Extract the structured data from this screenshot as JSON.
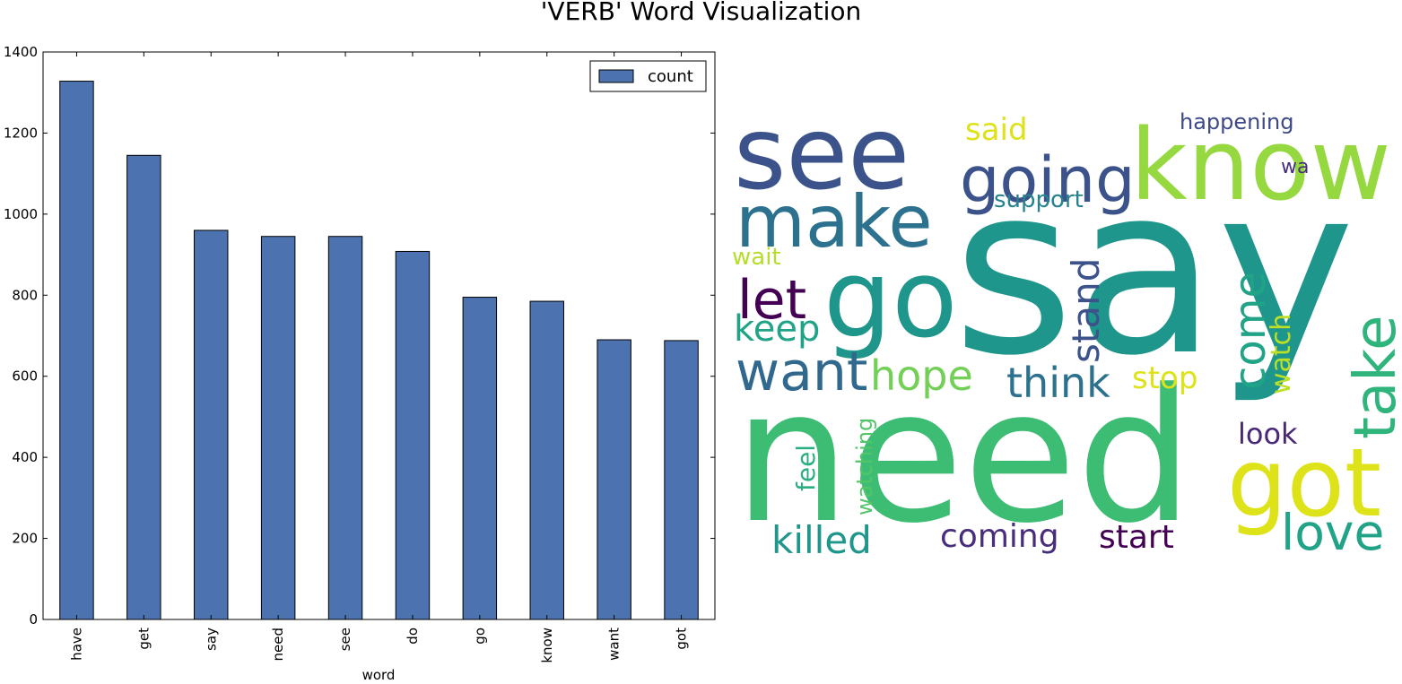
{
  "figure_title": "'VERB' Word Visualization",
  "chart_data": [
    {
      "type": "bar",
      "categories": [
        "have",
        "get",
        "say",
        "need",
        "see",
        "do",
        "go",
        "know",
        "want",
        "got"
      ],
      "series": [
        {
          "name": "count",
          "values": [
            1328,
            1145,
            960,
            945,
            945,
            908,
            795,
            785,
            690,
            688
          ],
          "color": "#4c72b0"
        }
      ],
      "xlabel": "word",
      "ylabel": "",
      "ylim": [
        0,
        1400
      ],
      "yticks": [
        0,
        200,
        400,
        600,
        800,
        1000,
        1200,
        1400
      ],
      "grid": false,
      "legend_placement": "top-right"
    },
    {
      "type": "wordcloud",
      "words": [
        {
          "text": "say",
          "color": "#1f968b"
        },
        {
          "text": "need",
          "color": "#3dbc74"
        },
        {
          "text": "see",
          "color": "#3b528b"
        },
        {
          "text": "know",
          "color": "#95d840"
        },
        {
          "text": "go",
          "color": "#1f968b"
        },
        {
          "text": "got",
          "color": "#dde318"
        },
        {
          "text": "make",
          "color": "#2c728e"
        },
        {
          "text": "going",
          "color": "#3b528b"
        },
        {
          "text": "want",
          "color": "#31688e"
        },
        {
          "text": "take",
          "color": "#2fb47c"
        },
        {
          "text": "love",
          "color": "#20a386"
        },
        {
          "text": "come",
          "color": "#20a386"
        },
        {
          "text": "let",
          "color": "#440154"
        },
        {
          "text": "think",
          "color": "#2c728e"
        },
        {
          "text": "hope",
          "color": "#73d056"
        },
        {
          "text": "stand",
          "color": "#3b528b"
        },
        {
          "text": "killed",
          "color": "#1f968b"
        },
        {
          "text": "keep",
          "color": "#20a386"
        },
        {
          "text": "coming",
          "color": "#472d7b"
        },
        {
          "text": "start",
          "color": "#440154"
        },
        {
          "text": "said",
          "color": "#dde318"
        },
        {
          "text": "stop",
          "color": "#dde318"
        },
        {
          "text": "watch",
          "color": "#bddf26"
        },
        {
          "text": "look",
          "color": "#482878"
        },
        {
          "text": "feel",
          "color": "#29af7f"
        },
        {
          "text": "watching",
          "color": "#52c569"
        },
        {
          "text": "support",
          "color": "#26828e"
        },
        {
          "text": "wait",
          "color": "#b5de2b"
        },
        {
          "text": "happening",
          "color": "#3e4989"
        },
        {
          "text": "wa",
          "color": "#472d7b"
        }
      ]
    }
  ]
}
